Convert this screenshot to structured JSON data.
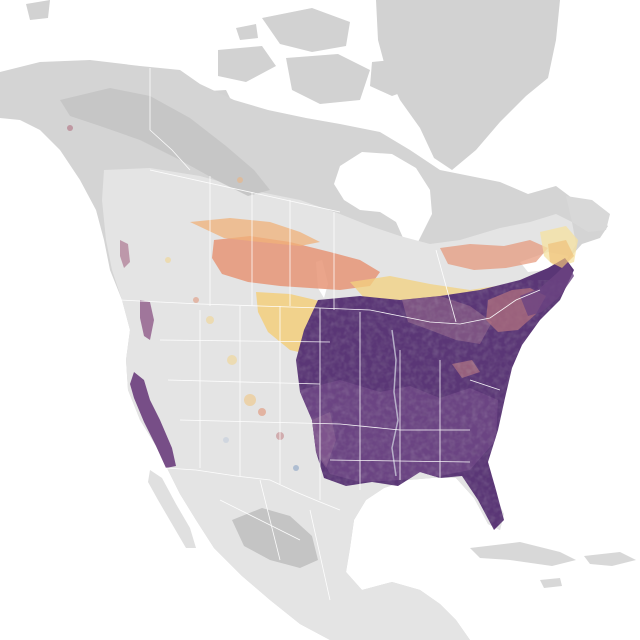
{
  "map": {
    "type": "species-abundance-range-map",
    "region": "North America",
    "colors": {
      "water": "#ffffff",
      "land_no_data": "#e3e3e3",
      "land_outside_range": "#c9c9c9",
      "boundary_line": "#ffffff",
      "abundance_high": "#4b2c6b",
      "abundance_mid_high": "#6b3f7f",
      "abundance_mid": "#a25a7c",
      "abundance_mid_low": "#e0876a",
      "abundance_low": "#f2c76a",
      "abundance_very_low": "#f6e3a2"
    },
    "legend": null,
    "title": null
  }
}
